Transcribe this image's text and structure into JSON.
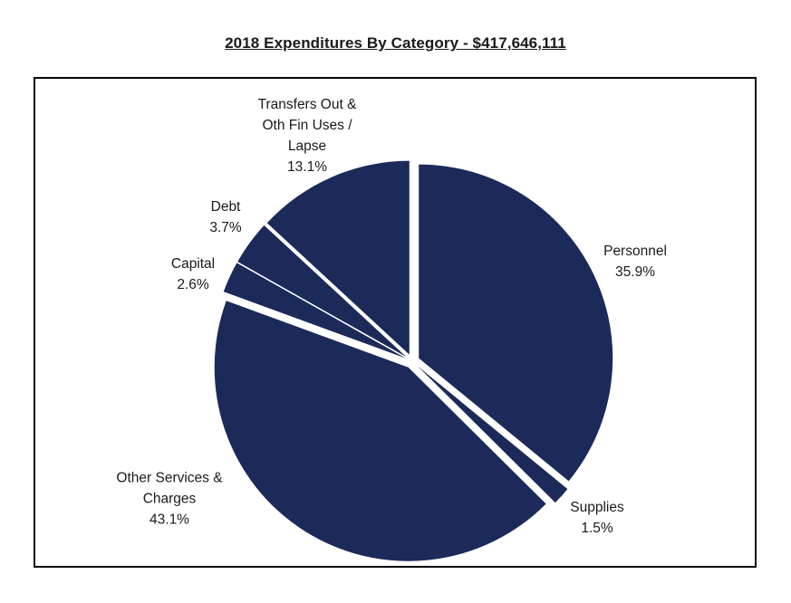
{
  "title": "2018 Expenditures By Category - $417,646,111",
  "colors": {
    "slice": "#1c2a5a",
    "frame": "#000000",
    "background": "#ffffff"
  },
  "chart_data": {
    "type": "pie",
    "title": "2018 Expenditures By Category - $417,646,111",
    "start_angle_deg": 0,
    "direction": "clockwise",
    "slices": [
      {
        "name": "Personnel",
        "value": 35.9,
        "label_lines": [
          "Personnel",
          "35.9%"
        ]
      },
      {
        "name": "Supplies",
        "value": 1.5,
        "label_lines": [
          "Supplies",
          "1.5%"
        ]
      },
      {
        "name": "Other Services & Charges",
        "value": 43.1,
        "label_lines": [
          "Other Services &",
          "Charges",
          "43.1%"
        ]
      },
      {
        "name": "Capital",
        "value": 2.6,
        "label_lines": [
          "Capital",
          "2.6%"
        ]
      },
      {
        "name": "Debt",
        "value": 3.7,
        "label_lines": [
          "Debt",
          "3.7%"
        ]
      },
      {
        "name": "Transfers Out & Oth Fin Uses / Lapse",
        "value": 13.1,
        "label_lines": [
          "Transfers Out &",
          "Oth Fin Uses /",
          "Lapse",
          "13.1%"
        ]
      }
    ]
  }
}
